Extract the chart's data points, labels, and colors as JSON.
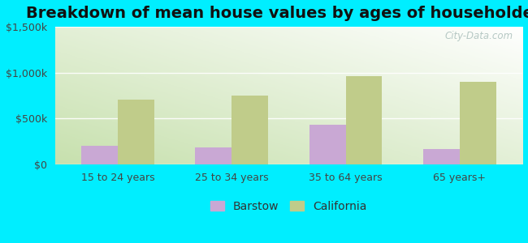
{
  "title": "Breakdown of mean house values by ages of householders",
  "categories": [
    "15 to 24 years",
    "25 to 34 years",
    "35 to 64 years",
    "65 years+"
  ],
  "barstow_values": [
    200000,
    185000,
    430000,
    170000
  ],
  "california_values": [
    710000,
    750000,
    960000,
    900000
  ],
  "barstow_color": "#c9a8d4",
  "california_color": "#c0cc8a",
  "ylim": [
    0,
    1500000
  ],
  "yticks": [
    0,
    500000,
    1000000,
    1500000
  ],
  "ytick_labels": [
    "$0",
    "$500k",
    "$1,000k",
    "$1,500k"
  ],
  "bar_width": 0.32,
  "background_outer": "#00eeff",
  "legend_barstow": "Barstow",
  "legend_california": "California",
  "watermark": "City-Data.com",
  "title_fontsize": 14,
  "tick_fontsize": 9,
  "legend_fontsize": 10
}
